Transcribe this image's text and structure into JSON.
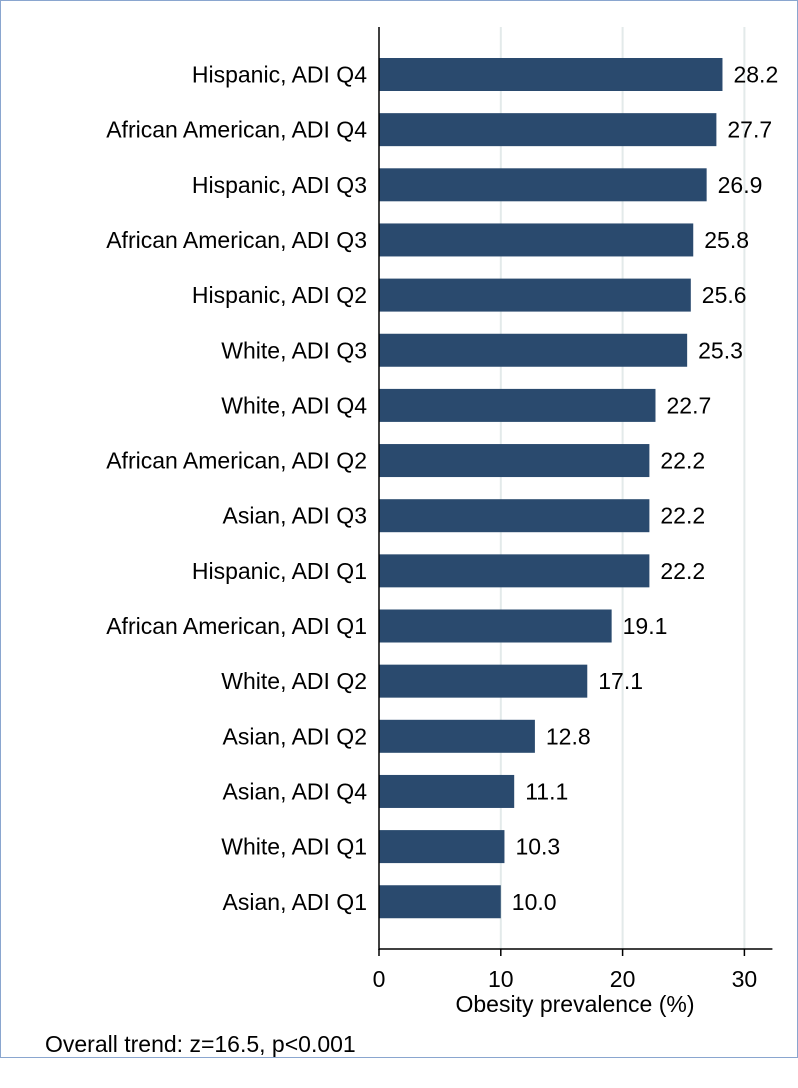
{
  "chart_data": {
    "type": "bar",
    "orientation": "horizontal",
    "categories": [
      "Hispanic, ADI Q4",
      "African American, ADI Q4",
      "Hispanic, ADI Q3",
      "African American, ADI Q3",
      "Hispanic, ADI Q2",
      "White, ADI Q3",
      "White, ADI Q4",
      "African American, ADI Q2",
      "Asian, ADI Q3",
      "Hispanic, ADI Q1",
      "African American, ADI Q1",
      "White, ADI Q2",
      "Asian, ADI Q2",
      "Asian, ADI Q4",
      "White, ADI Q1",
      "Asian, ADI Q1"
    ],
    "values": [
      28.2,
      27.7,
      26.9,
      25.8,
      25.6,
      25.3,
      22.7,
      22.2,
      22.2,
      22.2,
      19.1,
      17.1,
      12.8,
      11.1,
      10.3,
      10.0
    ],
    "value_labels": [
      "28.2",
      "27.7",
      "26.9",
      "25.8",
      "25.6",
      "25.3",
      "22.7",
      "22.2",
      "22.2",
      "22.2",
      "19.1",
      "17.1",
      "12.8",
      "11.1",
      "10.3",
      "10.0"
    ],
    "xlabel": "Obesity prevalence (%)",
    "xticks": [
      0,
      10,
      20,
      30
    ],
    "xtick_labels": [
      "0",
      "10",
      "20",
      "30"
    ],
    "xlim": [
      0,
      32.3
    ],
    "grid": true,
    "bar_color": "#2a4a6e",
    "grid_color": "#e3eaea"
  },
  "footnote": "Overall trend: z=16.5, p<0.001"
}
